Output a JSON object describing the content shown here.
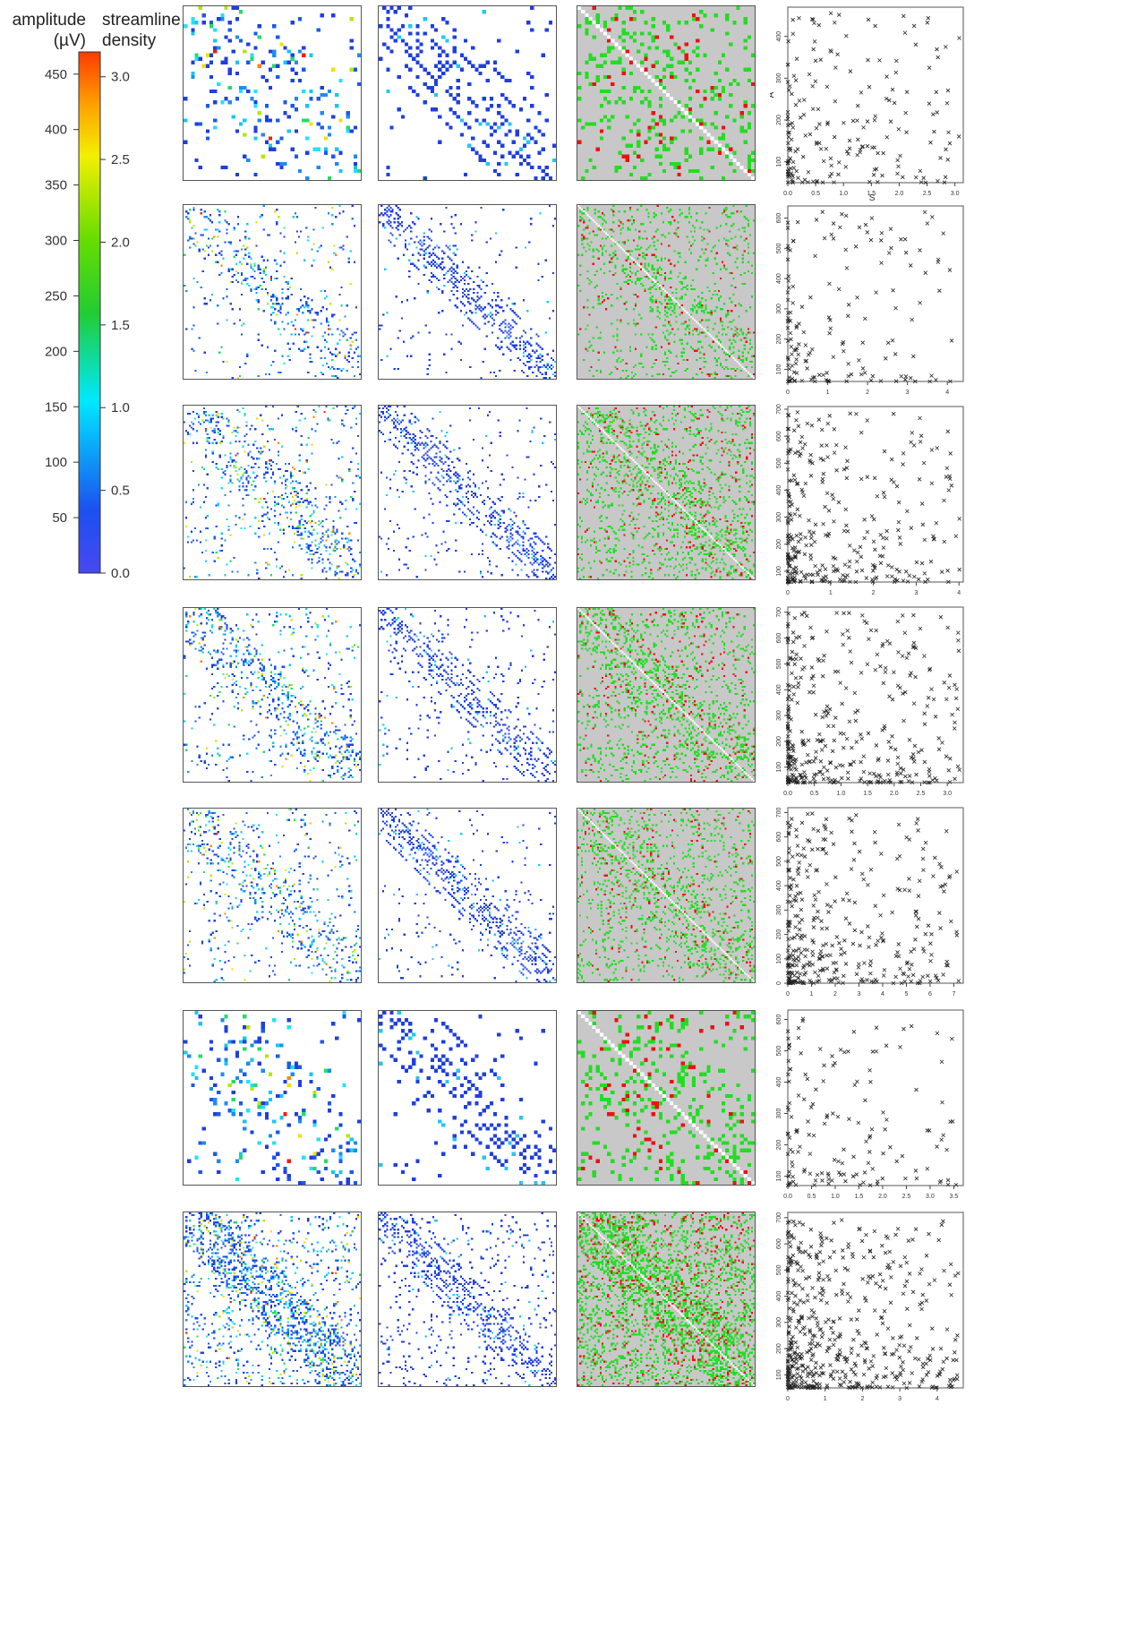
{
  "colorbar": {
    "left_title_lines": [
      "amplitude",
      "(µV)"
    ],
    "right_title_lines": [
      "streamline",
      "density"
    ],
    "left_ticks": [
      "450",
      "400",
      "350",
      "300",
      "250",
      "200",
      "150",
      "100",
      "50"
    ],
    "left_tick_values": [
      450,
      400,
      350,
      300,
      250,
      200,
      150,
      100,
      50
    ],
    "left_range": [
      0,
      470
    ],
    "right_ticks": [
      "3.0",
      "2.5",
      "2.0",
      "1.5",
      "1.0",
      "0.5",
      "0.0"
    ],
    "right_tick_values": [
      3.0,
      2.5,
      2.0,
      1.5,
      1.0,
      0.5,
      0.0
    ],
    "right_range": [
      0,
      3.15
    ]
  },
  "colors": {
    "scale_low": "#3b3bf0",
    "scale_mid": "#00f0ff",
    "scale_green": "#22cc22",
    "scale_yellow": "#f0f000",
    "scale_high": "#ff3a00",
    "blue": "#1f3fe0",
    "green": "#22dd22",
    "red": "#ee1111",
    "gray_bg": "#c8c8c8",
    "diag_white": "#ffffff"
  },
  "chart_data": {
    "type": "scatter",
    "marker": "x",
    "rows": [
      {
        "xlabel": "S",
        "ylabel": "A",
        "x_ticks": [
          "0.0",
          "0.5",
          "1.0",
          "1.5",
          "2.0",
          "2.5",
          "3.0"
        ],
        "x_tick_values": [
          0,
          0.5,
          1,
          1.5,
          2,
          2.5,
          3
        ],
        "xlim": [
          0,
          3.15
        ],
        "y_ticks": [
          "100",
          "200",
          "300",
          "400"
        ],
        "y_tick_values": [
          100,
          200,
          300,
          400
        ],
        "ylim": [
          50,
          470
        ],
        "n_points": 200
      },
      {
        "xlabel": "",
        "ylabel": "",
        "x_ticks": [
          "0",
          "1",
          "2",
          "3",
          "4"
        ],
        "x_tick_values": [
          0,
          1,
          2,
          3,
          4
        ],
        "xlim": [
          0,
          4.4
        ],
        "y_ticks": [
          "100",
          "200",
          "300",
          "400",
          "500",
          "600"
        ],
        "y_tick_values": [
          100,
          200,
          300,
          400,
          500,
          600
        ],
        "ylim": [
          60,
          640
        ],
        "n_points": 160
      },
      {
        "xlabel": "",
        "ylabel": "",
        "x_ticks": [
          "0",
          "1",
          "2",
          "3",
          "4"
        ],
        "x_tick_values": [
          0,
          1,
          2,
          3,
          4
        ],
        "xlim": [
          0,
          4.1
        ],
        "y_ticks": [
          "100",
          "200",
          "300",
          "400",
          "500",
          "600",
          "700"
        ],
        "y_tick_values": [
          100,
          200,
          300,
          400,
          500,
          600,
          700
        ],
        "ylim": [
          60,
          710
        ],
        "n_points": 320
      },
      {
        "xlabel": "",
        "ylabel": "",
        "x_ticks": [
          "0.0",
          "0.5",
          "1.0",
          "1.5",
          "2.0",
          "2.5",
          "3.0"
        ],
        "x_tick_values": [
          0,
          0.5,
          1,
          1.5,
          2,
          2.5,
          3
        ],
        "xlim": [
          0,
          3.3
        ],
        "y_ticks": [
          "100",
          "200",
          "300",
          "400",
          "500",
          "600",
          "700"
        ],
        "y_tick_values": [
          100,
          200,
          300,
          400,
          500,
          600,
          700
        ],
        "ylim": [
          40,
          720
        ],
        "n_points": 380
      },
      {
        "xlabel": "",
        "ylabel": "",
        "x_ticks": [
          "0",
          "1",
          "2",
          "3",
          "4",
          "5",
          "6",
          "7"
        ],
        "x_tick_values": [
          0,
          1,
          2,
          3,
          4,
          5,
          6,
          7
        ],
        "xlim": [
          0,
          7.4
        ],
        "y_ticks": [
          "0",
          "100",
          "200",
          "300",
          "400",
          "500",
          "600",
          "700"
        ],
        "y_tick_values": [
          0,
          100,
          200,
          300,
          400,
          500,
          600,
          700
        ],
        "ylim": [
          0,
          720
        ],
        "n_points": 360
      },
      {
        "xlabel": "",
        "ylabel": "",
        "x_ticks": [
          "0.0",
          "0.5",
          "1.0",
          "1.5",
          "2.0",
          "2.5",
          "3.0",
          "3.5"
        ],
        "x_tick_values": [
          0,
          0.5,
          1,
          1.5,
          2,
          2.5,
          3,
          3.5
        ],
        "xlim": [
          0,
          3.7
        ],
        "y_ticks": [
          "100",
          "200",
          "300",
          "400",
          "500",
          "600"
        ],
        "y_tick_values": [
          100,
          200,
          300,
          400,
          500,
          600
        ],
        "ylim": [
          70,
          630
        ],
        "n_points": 150
      },
      {
        "xlabel": "",
        "ylabel": "",
        "x_ticks": [
          "0",
          "1",
          "2",
          "3",
          "4"
        ],
        "x_tick_values": [
          0,
          1,
          2,
          3,
          4
        ],
        "xlim": [
          0,
          4.7
        ],
        "y_ticks": [
          "100",
          "200",
          "300",
          "400",
          "500",
          "600",
          "700"
        ],
        "y_tick_values": [
          100,
          200,
          300,
          400,
          500,
          600,
          700
        ],
        "ylim": [
          50,
          720
        ],
        "n_points": 520
      }
    ]
  }
}
